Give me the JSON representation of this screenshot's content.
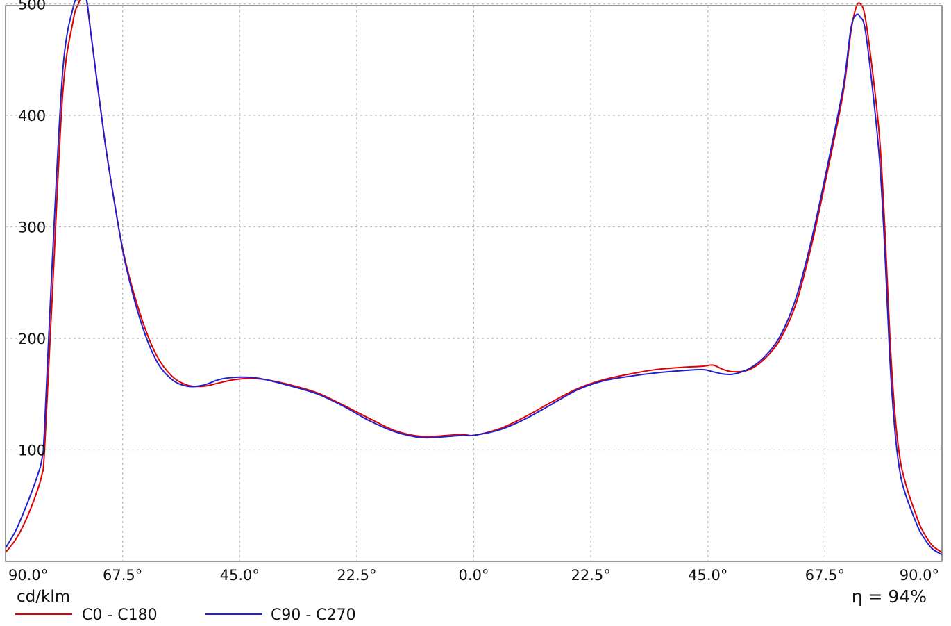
{
  "chart_data": {
    "type": "line",
    "xlim": [
      -90,
      90
    ],
    "ylim": [
      0,
      500
    ],
    "x_tick_labels": [
      "90.0°",
      "67.5°",
      "45.0°",
      "22.5°",
      "0.0°",
      "22.5°",
      "45.0°",
      "67.5°",
      "90.0°"
    ],
    "y_tick_labels": [
      "100",
      "200",
      "300",
      "400",
      "500"
    ],
    "grid": true,
    "unit_label": "cd/klm",
    "efficiency_label": "η = 94%",
    "series": [
      {
        "name": "C0 - C180",
        "color": "#e00000",
        "x": [
          -90,
          -88,
          -86,
          -84,
          -83,
          -82.5,
          -81,
          -79,
          -77,
          -76,
          -75.3,
          -74.5,
          -73.5,
          -71,
          -69,
          -67,
          -64,
          -61,
          -58,
          -55,
          -52,
          -49,
          -46,
          -43,
          -40,
          -35,
          -30,
          -25,
          -20,
          -15,
          -10,
          -5,
          -2,
          0,
          5,
          10,
          15,
          20,
          25,
          30,
          35,
          40,
          44,
          46,
          48,
          50,
          53,
          56,
          59,
          62,
          65,
          68,
          71,
          72.5,
          73.5,
          74.3,
          75.2,
          76.5,
          78,
          79,
          80,
          81,
          82,
          83,
          84,
          85,
          86,
          88,
          90
        ],
        "y": [
          8,
          20,
          38,
          62,
          78,
          100,
          240,
          420,
          485,
          500,
          507,
          505,
          470,
          380,
          320,
          270,
          220,
          185,
          166,
          158,
          157,
          160,
          163,
          164,
          163,
          158,
          151,
          140,
          128,
          117,
          112,
          113,
          114,
          113,
          119,
          130,
          143,
          155,
          163,
          168,
          172,
          174,
          175,
          176,
          172,
          170,
          172,
          182,
          200,
          232,
          285,
          350,
          420,
          475,
          497,
          500,
          489,
          445,
          380,
          300,
          200,
          130,
          90,
          70,
          55,
          42,
          30,
          15,
          8
        ]
      },
      {
        "name": "C90 - C270",
        "color": "#2020cc",
        "x": [
          -90,
          -88,
          -86,
          -84,
          -83,
          -82.5,
          -81,
          -79,
          -77,
          -76,
          -75.3,
          -74.5,
          -73.5,
          -71,
          -69,
          -67,
          -64,
          -61,
          -58,
          -55,
          -52,
          -49,
          -46,
          -43,
          -40,
          -35,
          -30,
          -25,
          -20,
          -15,
          -10,
          -5,
          -2,
          0,
          5,
          10,
          15,
          20,
          25,
          30,
          35,
          40,
          44,
          46,
          48,
          50,
          53,
          56,
          59,
          62,
          65,
          68,
          71,
          72.5,
          73.5,
          74.3,
          75.2,
          76.5,
          78,
          79,
          80,
          81,
          82,
          83,
          84,
          85,
          86,
          88,
          90
        ],
        "y": [
          12,
          28,
          50,
          75,
          92,
          120,
          270,
          440,
          497,
          504,
          507,
          506,
          470,
          380,
          320,
          268,
          215,
          180,
          163,
          157,
          158,
          163,
          165,
          165,
          163,
          157,
          150,
          139,
          126,
          116,
          111,
          112,
          113,
          113,
          118,
          128,
          141,
          154,
          162,
          166,
          169,
          171,
          172,
          170,
          168,
          168,
          173,
          184,
          203,
          237,
          290,
          355,
          425,
          478,
          490,
          488,
          478,
          430,
          360,
          280,
          180,
          115,
          78,
          60,
          47,
          35,
          25,
          12,
          6
        ]
      }
    ]
  }
}
